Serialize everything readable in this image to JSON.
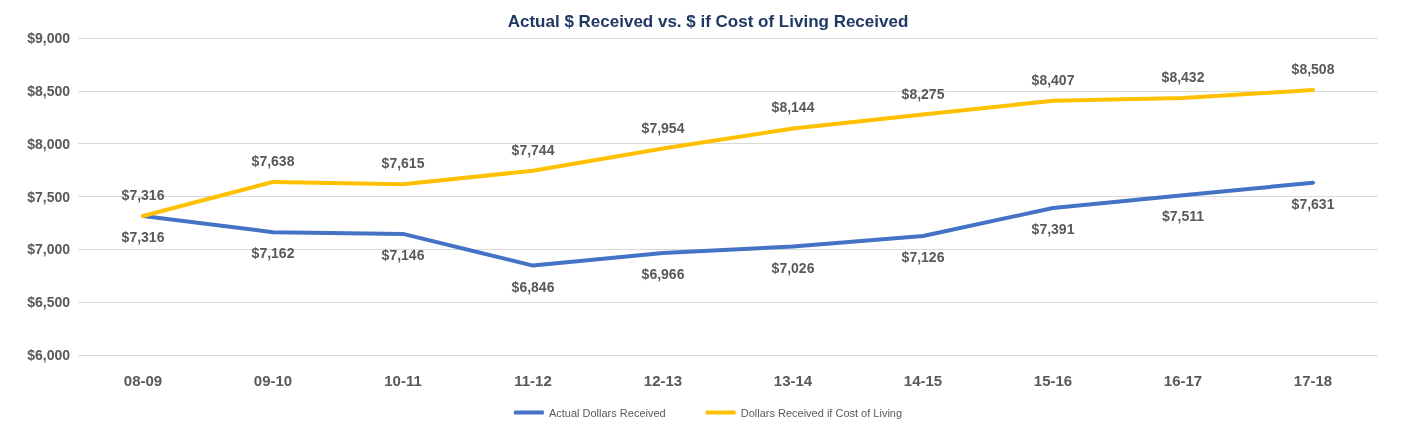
{
  "chart_data": {
    "type": "line",
    "title": "Actual $ Received vs. $ if Cost of Living Received",
    "categories": [
      "08-09",
      "09-10",
      "10-11",
      "11-12",
      "12-13",
      "13-14",
      "14-15",
      "15-16",
      "16-17",
      "17-18"
    ],
    "series": [
      {
        "name": "Actual Dollars Received",
        "color": "#4472c4",
        "values": [
          7316,
          7162,
          7146,
          6846,
          6966,
          7026,
          7126,
          7391,
          7511,
          7631
        ],
        "value_labels": [
          "$7,316",
          "$7,162",
          "$7,146",
          "$6,846",
          "$6,966",
          "$7,026",
          "$7,126",
          "$7,391",
          "$7,511",
          "$7,631"
        ]
      },
      {
        "name": "Dollars Received if Cost of Living",
        "color": "#ffc000",
        "values": [
          7316,
          7638,
          7615,
          7744,
          7954,
          8144,
          8275,
          8407,
          8432,
          8508
        ],
        "value_labels": [
          "$7,316",
          "$7,638",
          "$7,615",
          "$7,744",
          "$7,954",
          "$8,144",
          "$8,275",
          "$8,407",
          "$8,432",
          "$8,508"
        ]
      }
    ],
    "ylim": [
      6000,
      9000
    ],
    "yticks": [
      {
        "value": 6000,
        "label": "$6,000"
      },
      {
        "value": 6500,
        "label": "$6,500"
      },
      {
        "value": 7000,
        "label": "$7,000"
      },
      {
        "value": 7500,
        "label": "$7,500"
      },
      {
        "value": 8000,
        "label": "$8,000"
      },
      {
        "value": 8500,
        "label": "$8,500"
      },
      {
        "value": 9000,
        "label": "$9,000"
      }
    ],
    "grid": "y",
    "legend": "bottom",
    "marker": "none",
    "line_style": "solid"
  }
}
